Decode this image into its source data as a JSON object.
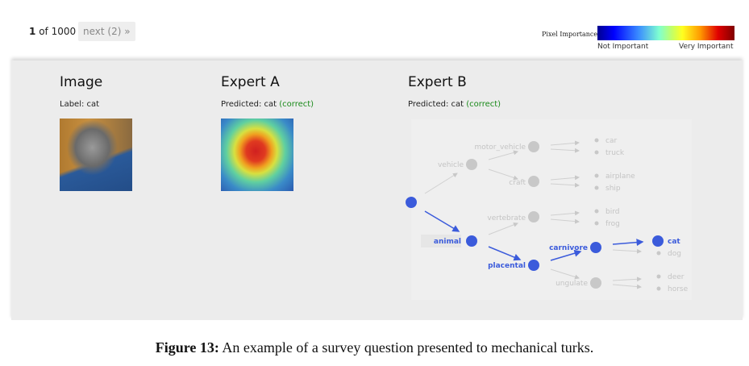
{
  "pager": {
    "current": "1",
    "of_text": "of 1000",
    "next_label": "next (2) »"
  },
  "legend": {
    "title": "Pixel Importance:",
    "low_label": "Not Important",
    "high_label": "Very Important",
    "colormap": "jet"
  },
  "columns": [
    {
      "title": "Image",
      "subtitle": "Label: cat"
    },
    {
      "title": "Expert A",
      "subtitle": "Predicted: cat",
      "status": "(correct)"
    },
    {
      "title": "Expert B",
      "subtitle": "Predicted: cat",
      "status": "(correct)"
    }
  ],
  "tree": {
    "highlight_color": "#3b5bdb",
    "muted_color": "#c4c4c4",
    "nodes": {
      "vehicle": "vehicle",
      "motor_vehicle": "motor_vehicle",
      "craft": "craft",
      "vertebrate": "vertebrate",
      "animal": "animal",
      "placental": "placental",
      "carnivore": "carnivore",
      "ungulate": "ungulate"
    },
    "leaves": {
      "car": "car",
      "truck": "truck",
      "airplane": "airplane",
      "ship": "ship",
      "bird": "bird",
      "frog": "frog",
      "cat": "cat",
      "dog": "dog",
      "deer": "deer",
      "horse": "horse"
    },
    "path": [
      "animal",
      "placental",
      "carnivore",
      "cat"
    ]
  },
  "caption": {
    "label": "Figure 13:",
    "text": " An example of a survey question presented to mechanical turks."
  }
}
